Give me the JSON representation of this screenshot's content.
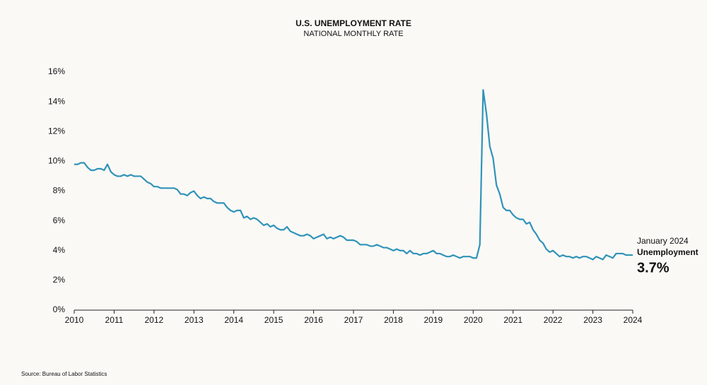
{
  "chart_data": {
    "type": "line",
    "title": "U.S. UNEMPLOYMENT RATE",
    "subtitle": "NATIONAL MONTHLY RATE",
    "source": "Source: Bureau of Labor Statistics",
    "annotation": {
      "date": "January 2024",
      "label": "Unemployment",
      "value": "3.7%"
    },
    "x": [
      2010,
      2010.083,
      2010.167,
      2010.25,
      2010.333,
      2010.417,
      2010.5,
      2010.583,
      2010.667,
      2010.75,
      2010.833,
      2010.917,
      2011,
      2011.083,
      2011.167,
      2011.25,
      2011.333,
      2011.417,
      2011.5,
      2011.583,
      2011.667,
      2011.75,
      2011.833,
      2011.917,
      2012,
      2012.083,
      2012.167,
      2012.25,
      2012.333,
      2012.417,
      2012.5,
      2012.583,
      2012.667,
      2012.75,
      2012.833,
      2012.917,
      2013,
      2013.083,
      2013.167,
      2013.25,
      2013.333,
      2013.417,
      2013.5,
      2013.583,
      2013.667,
      2013.75,
      2013.833,
      2013.917,
      2014,
      2014.083,
      2014.167,
      2014.25,
      2014.333,
      2014.417,
      2014.5,
      2014.583,
      2014.667,
      2014.75,
      2014.833,
      2014.917,
      2015,
      2015.083,
      2015.167,
      2015.25,
      2015.333,
      2015.417,
      2015.5,
      2015.583,
      2015.667,
      2015.75,
      2015.833,
      2015.917,
      2016,
      2016.083,
      2016.167,
      2016.25,
      2016.333,
      2016.417,
      2016.5,
      2016.583,
      2016.667,
      2016.75,
      2016.833,
      2016.917,
      2017,
      2017.083,
      2017.167,
      2017.25,
      2017.333,
      2017.417,
      2017.5,
      2017.583,
      2017.667,
      2017.75,
      2017.833,
      2017.917,
      2018,
      2018.083,
      2018.167,
      2018.25,
      2018.333,
      2018.417,
      2018.5,
      2018.583,
      2018.667,
      2018.75,
      2018.833,
      2018.917,
      2019,
      2019.083,
      2019.167,
      2019.25,
      2019.333,
      2019.417,
      2019.5,
      2019.583,
      2019.667,
      2019.75,
      2019.833,
      2019.917,
      2020,
      2020.083,
      2020.167,
      2020.25,
      2020.333,
      2020.417,
      2020.5,
      2020.583,
      2020.667,
      2020.75,
      2020.833,
      2020.917,
      2021,
      2021.083,
      2021.167,
      2021.25,
      2021.333,
      2021.417,
      2021.5,
      2021.583,
      2021.667,
      2021.75,
      2021.833,
      2021.917,
      2022,
      2022.083,
      2022.167,
      2022.25,
      2022.333,
      2022.417,
      2022.5,
      2022.583,
      2022.667,
      2022.75,
      2022.833,
      2022.917,
      2023,
      2023.083,
      2023.167,
      2023.25,
      2023.333,
      2023.417,
      2023.5,
      2023.583,
      2023.667,
      2023.75,
      2023.833,
      2023.917,
      2024
    ],
    "series": [
      {
        "name": "Unemployment",
        "color": "#2f93b9",
        "values": [
          9.8,
          9.8,
          9.9,
          9.9,
          9.6,
          9.4,
          9.4,
          9.5,
          9.5,
          9.4,
          9.8,
          9.3,
          9.1,
          9.0,
          9.0,
          9.1,
          9.0,
          9.1,
          9.0,
          9.0,
          9.0,
          8.8,
          8.6,
          8.5,
          8.3,
          8.3,
          8.2,
          8.2,
          8.2,
          8.2,
          8.2,
          8.1,
          7.8,
          7.8,
          7.7,
          7.9,
          8.0,
          7.7,
          7.5,
          7.6,
          7.5,
          7.5,
          7.3,
          7.2,
          7.2,
          7.2,
          6.9,
          6.7,
          6.6,
          6.7,
          6.7,
          6.2,
          6.3,
          6.1,
          6.2,
          6.1,
          5.9,
          5.7,
          5.8,
          5.6,
          5.7,
          5.5,
          5.4,
          5.4,
          5.6,
          5.3,
          5.2,
          5.1,
          5.0,
          5.0,
          5.1,
          5.0,
          4.8,
          4.9,
          5.0,
          5.1,
          4.8,
          4.9,
          4.8,
          4.9,
          5.0,
          4.9,
          4.7,
          4.7,
          4.7,
          4.6,
          4.4,
          4.4,
          4.4,
          4.3,
          4.3,
          4.4,
          4.3,
          4.2,
          4.2,
          4.1,
          4.0,
          4.1,
          4.0,
          4.0,
          3.8,
          4.0,
          3.8,
          3.8,
          3.7,
          3.8,
          3.8,
          3.9,
          4.0,
          3.8,
          3.8,
          3.7,
          3.6,
          3.6,
          3.7,
          3.6,
          3.5,
          3.6,
          3.6,
          3.6,
          3.5,
          3.5,
          4.4,
          14.8,
          13.2,
          11.0,
          10.2,
          8.4,
          7.8,
          6.9,
          6.7,
          6.7,
          6.4,
          6.2,
          6.1,
          6.1,
          5.8,
          5.9,
          5.4,
          5.1,
          4.7,
          4.5,
          4.1,
          3.9,
          4.0,
          3.8,
          3.6,
          3.7,
          3.6,
          3.6,
          3.5,
          3.6,
          3.5,
          3.6,
          3.6,
          3.5,
          3.4,
          3.6,
          3.5,
          3.4,
          3.7,
          3.6,
          3.5,
          3.8,
          3.8,
          3.8,
          3.7,
          3.7,
          3.7
        ]
      }
    ],
    "xlim": [
      2010,
      2024
    ],
    "xticks": [
      2010,
      2011,
      2012,
      2013,
      2014,
      2015,
      2016,
      2017,
      2018,
      2019,
      2020,
      2021,
      2022,
      2023,
      2024
    ],
    "ylim": [
      0,
      16
    ],
    "yticks": [
      {
        "value": 0,
        "label": "0%"
      },
      {
        "value": 2,
        "label": "2%"
      },
      {
        "value": 4,
        "label": "4%"
      },
      {
        "value": 6,
        "label": "6%"
      },
      {
        "value": 8,
        "label": "8%"
      },
      {
        "value": 10,
        "label": "10%"
      },
      {
        "value": 12,
        "label": "12%"
      },
      {
        "value": 14,
        "label": "14%"
      },
      {
        "value": 16,
        "label": "16%"
      }
    ],
    "grid": false
  }
}
